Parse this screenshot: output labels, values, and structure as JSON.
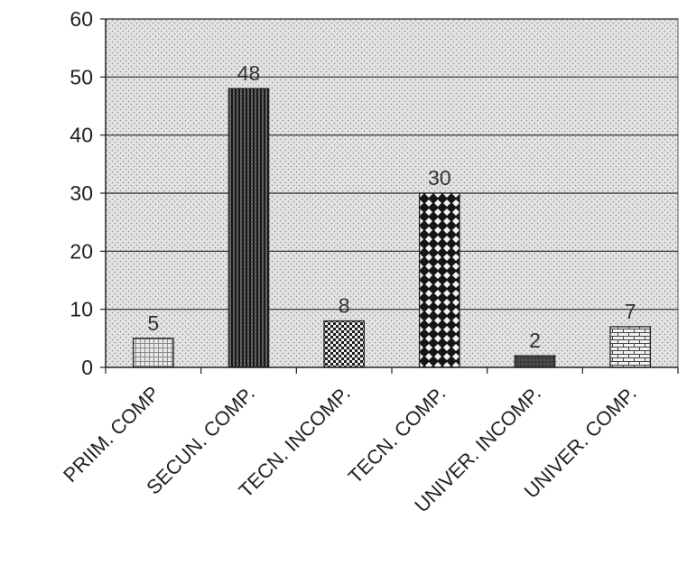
{
  "chart_data": {
    "type": "bar",
    "categories": [
      "PRIIM. COMP",
      "SECUN. COMP.",
      "TECN. INCOMP.",
      "TECN. COMP.",
      "UNIVER. INCOMP.",
      "UNIVER. COMP."
    ],
    "values": [
      5,
      48,
      8,
      30,
      2,
      7
    ],
    "data_labels": [
      "5",
      "48",
      "8",
      "30",
      "2",
      "7"
    ],
    "ylim": [
      0,
      60
    ],
    "yticks": [
      0,
      10,
      20,
      30,
      40,
      50,
      60
    ],
    "grid": true,
    "legend": "none",
    "title": "",
    "xlabel": "",
    "ylabel": "",
    "bar_patterns": [
      "grid-light",
      "vertical-lines",
      "checker",
      "diamond",
      "solid-dark",
      "brick"
    ]
  }
}
